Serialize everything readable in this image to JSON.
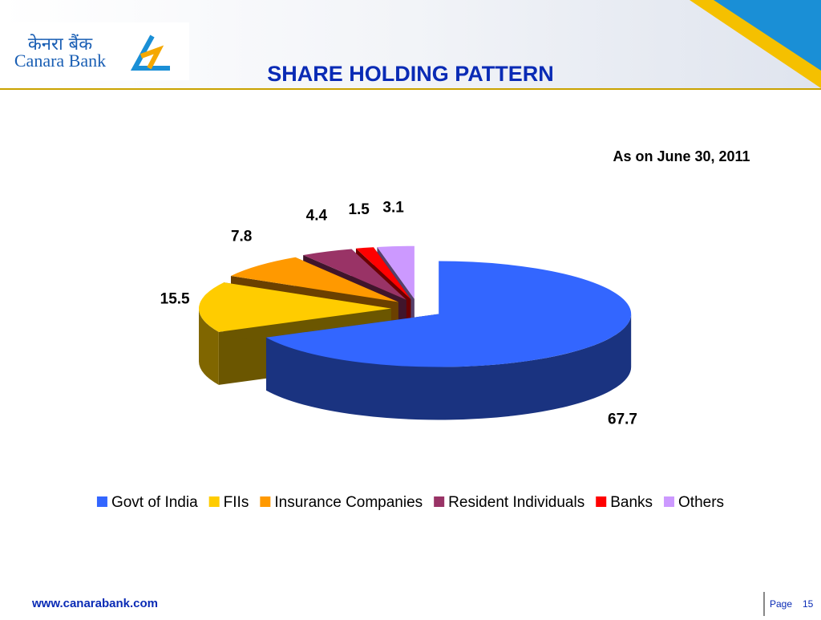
{
  "header": {
    "logo_hindi": "केनरा बैंक",
    "logo_name": "Canara Bank",
    "title": "SHARE HOLDING PATTERN"
  },
  "chart_data": {
    "type": "pie",
    "subtitle": "As on June 30, 2011",
    "categories": [
      "Govt of India",
      "FIIs",
      "Insurance Companies",
      "Resident Individuals",
      "Banks",
      "Others"
    ],
    "values": [
      67.7,
      15.5,
      7.8,
      4.4,
      1.5,
      3.1
    ],
    "colors": [
      "#3366ff",
      "#ffcc00",
      "#ff9900",
      "#993366",
      "#ff0000",
      "#cc99ff"
    ],
    "legend": "bottom"
  },
  "footer": {
    "url": "www.canarabank.com",
    "page_label": "Page",
    "page_number": 15
  }
}
